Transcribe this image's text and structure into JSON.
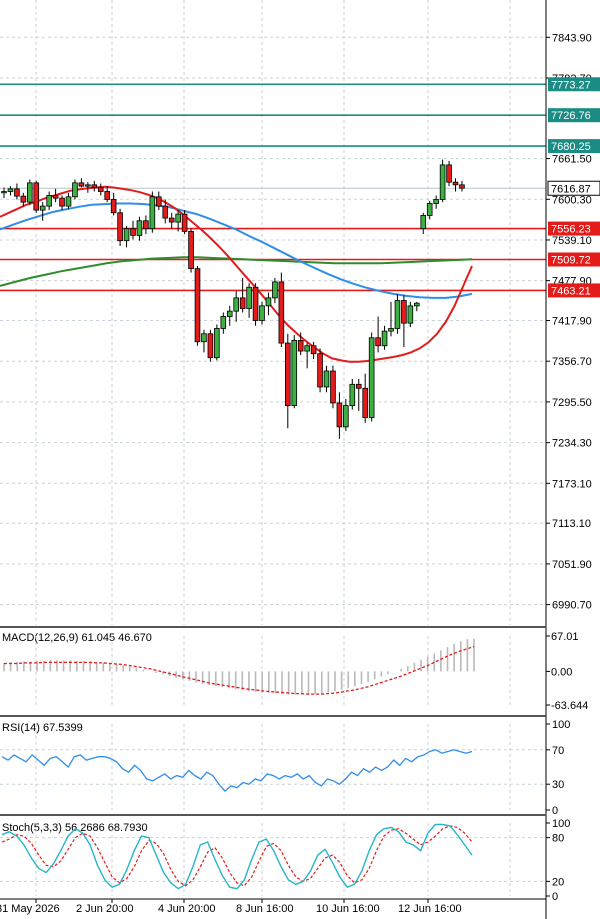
{
  "chart_data": [
    {
      "type": "candlestick",
      "panel": "price",
      "x_labels": [
        "31 May 2026",
        "2 Jun 20:00",
        "4 Jun 20:00",
        "8 Jun 16:00",
        "10 Jun 16:00",
        "12 Jun 16:00"
      ],
      "y_ticks": [
        "7843.90",
        "7782.70",
        "7661.50",
        "7600.30",
        "7539.10",
        "7477.90",
        "7417.90",
        "7356.70",
        "7295.50",
        "7234.30",
        "7173.10",
        "7113.10",
        "7051.90",
        "6990.70"
      ],
      "ylim": [
        6960,
        7900
      ],
      "current_price": {
        "label": "7616.87",
        "value": 7616.87
      },
      "levels": [
        {
          "label": "7773.27",
          "value": 7773.27,
          "color": "#1a8c84"
        },
        {
          "label": "7726.76",
          "value": 7726.76,
          "color": "#1a8c84"
        },
        {
          "label": "7680.25",
          "value": 7680.25,
          "color": "#1a8c84"
        },
        {
          "label": "7556.23",
          "value": 7556.23,
          "color": "#e31b1b"
        },
        {
          "label": "7509.72",
          "value": 7509.72,
          "color": "#e31b1b"
        },
        {
          "label": "7463.21",
          "value": 7463.21,
          "color": "#e31b1b"
        }
      ],
      "candles": [
        [
          7610,
          7618,
          7602,
          7612
        ],
        [
          7612,
          7620,
          7606,
          7616
        ],
        [
          7616,
          7624,
          7600,
          7605
        ],
        [
          7605,
          7610,
          7590,
          7596
        ],
        [
          7596,
          7630,
          7592,
          7625
        ],
        [
          7625,
          7628,
          7580,
          7584
        ],
        [
          7584,
          7596,
          7568,
          7590
        ],
        [
          7590,
          7612,
          7584,
          7606
        ],
        [
          7606,
          7616,
          7596,
          7602
        ],
        [
          7602,
          7606,
          7584,
          7590
        ],
        [
          7590,
          7610,
          7586,
          7604
        ],
        [
          7604,
          7630,
          7600,
          7625
        ],
        [
          7625,
          7632,
          7618,
          7620
        ],
        [
          7620,
          7626,
          7610,
          7622
        ],
        [
          7622,
          7628,
          7612,
          7618
        ],
        [
          7618,
          7624,
          7606,
          7612
        ],
        [
          7612,
          7620,
          7596,
          7600
        ],
        [
          7600,
          7610,
          7576,
          7580
        ],
        [
          7580,
          7586,
          7530,
          7538
        ],
        [
          7538,
          7560,
          7528,
          7556
        ],
        [
          7556,
          7568,
          7540,
          7546
        ],
        [
          7546,
          7574,
          7538,
          7568
        ],
        [
          7568,
          7576,
          7548,
          7556
        ],
        [
          7556,
          7612,
          7550,
          7604
        ],
        [
          7604,
          7612,
          7584,
          7590
        ],
        [
          7590,
          7600,
          7564,
          7572
        ],
        [
          7572,
          7580,
          7556,
          7566
        ],
        [
          7566,
          7584,
          7552,
          7578
        ],
        [
          7578,
          7584,
          7548,
          7552
        ],
        [
          7552,
          7556,
          7490,
          7496
        ],
        [
          7496,
          7500,
          7380,
          7386
        ],
        [
          7386,
          7404,
          7370,
          7398
        ],
        [
          7398,
          7404,
          7356,
          7362
        ],
        [
          7362,
          7412,
          7358,
          7406
        ],
        [
          7406,
          7430,
          7398,
          7424
        ],
        [
          7424,
          7440,
          7410,
          7432
        ],
        [
          7432,
          7462,
          7416,
          7452
        ],
        [
          7452,
          7482,
          7430,
          7436
        ],
        [
          7436,
          7474,
          7422,
          7468
        ],
        [
          7468,
          7474,
          7410,
          7418
        ],
        [
          7418,
          7446,
          7412,
          7440
        ],
        [
          7440,
          7460,
          7426,
          7452
        ],
        [
          7452,
          7482,
          7444,
          7476
        ],
        [
          7476,
          7490,
          7378,
          7384
        ],
        [
          7384,
          7398,
          7256,
          7290
        ],
        [
          7290,
          7396,
          7286,
          7388
        ],
        [
          7388,
          7400,
          7366,
          7372
        ],
        [
          7372,
          7384,
          7346,
          7380
        ],
        [
          7380,
          7386,
          7360,
          7368
        ],
        [
          7368,
          7376,
          7310,
          7318
        ],
        [
          7318,
          7350,
          7310,
          7342
        ],
        [
          7342,
          7350,
          7286,
          7294
        ],
        [
          7294,
          7310,
          7240,
          7258
        ],
        [
          7258,
          7300,
          7252,
          7290
        ],
        [
          7290,
          7330,
          7284,
          7322
        ],
        [
          7322,
          7330,
          7282,
          7316
        ],
        [
          7316,
          7338,
          7264,
          7272
        ],
        [
          7272,
          7400,
          7266,
          7392
        ],
        [
          7392,
          7424,
          7370,
          7380
        ],
        [
          7380,
          7410,
          7374,
          7402
        ],
        [
          7402,
          7446,
          7394,
          7406
        ],
        [
          7406,
          7458,
          7398,
          7448
        ],
        [
          7448,
          7456,
          7378,
          7414
        ],
        [
          7414,
          7446,
          7408,
          7440
        ],
        [
          7440,
          7446,
          7432,
          7444
        ],
        [
          7556,
          7580,
          7548,
          7576
        ],
        [
          7576,
          7598,
          7570,
          7594
        ],
        [
          7594,
          7606,
          7586,
          7600
        ],
        [
          7600,
          7660,
          7596,
          7652
        ],
        [
          7652,
          7658,
          7620,
          7626
        ],
        [
          7626,
          7632,
          7612,
          7622
        ],
        [
          7622,
          7628,
          7612,
          7617
        ]
      ],
      "ma_red": [
        7574,
        7580,
        7586,
        7592,
        7596,
        7601,
        7605,
        7609,
        7613,
        7615,
        7617,
        7618,
        7619,
        7618,
        7616,
        7614,
        7611,
        7607,
        7602,
        7595,
        7587,
        7577,
        7566,
        7555,
        7543,
        7530,
        7516,
        7501,
        7486,
        7471,
        7456,
        7440,
        7424,
        7410,
        7398,
        7387,
        7377,
        7368,
        7361,
        7358,
        7356,
        7356,
        7357,
        7359,
        7361,
        7363,
        7366,
        7370,
        7376,
        7385,
        7398,
        7416,
        7440,
        7470,
        7500
      ],
      "ma_blue": [
        7555,
        7562,
        7569,
        7575,
        7581,
        7585,
        7589,
        7592,
        7593,
        7594,
        7594,
        7593,
        7591,
        7588,
        7583,
        7578,
        7571,
        7563,
        7555,
        7545,
        7536,
        7526,
        7516,
        7506,
        7497,
        7488,
        7480,
        7473,
        7467,
        7462,
        7458,
        7455,
        7453,
        7452,
        7452,
        7454,
        7458
      ],
      "ma_green": [
        7470,
        7476,
        7482,
        7487,
        7492,
        7496,
        7500,
        7504,
        7507,
        7509,
        7511,
        7512,
        7513,
        7513,
        7512,
        7511,
        7510,
        7509,
        7508,
        7507,
        7506,
        7505,
        7504,
        7504,
        7504,
        7504,
        7505,
        7506,
        7507,
        7508,
        7509,
        7510
      ]
    },
    {
      "type": "bar",
      "panel": "macd",
      "title": "MACD(12,26,9) 61.045 46.670",
      "y_ticks": [
        "67.01",
        "0.00",
        "-63.644"
      ],
      "ylim": [
        -63.644,
        67.01
      ],
      "histogram": [
        16,
        17,
        18,
        19,
        19,
        20,
        20,
        21,
        21,
        21,
        21,
        20,
        20,
        19,
        18,
        17,
        16,
        14,
        12,
        9,
        6,
        3,
        0,
        -3,
        -6,
        -9,
        -12,
        -15,
        -18,
        -21,
        -24,
        -26,
        -28,
        -30,
        -32,
        -34,
        -36,
        -38,
        -39,
        -40,
        -41,
        -42,
        -43,
        -44,
        -44,
        -44,
        -44,
        -43,
        -42,
        -40,
        -38,
        -35,
        -32,
        -28,
        -24,
        -20,
        -15,
        -10,
        -5,
        0,
        5,
        10,
        16,
        22,
        28,
        34,
        40,
        46,
        52,
        57,
        61,
        62
      ],
      "signal": [
        15,
        15,
        15,
        16,
        16,
        16,
        17,
        17,
        17,
        17,
        17,
        17,
        17,
        17,
        16,
        16,
        15,
        14,
        13,
        11,
        9,
        7,
        5,
        2,
        -1,
        -4,
        -7,
        -10,
        -13,
        -16,
        -19,
        -22,
        -24,
        -26,
        -28,
        -30,
        -32,
        -34,
        -35,
        -37,
        -38,
        -39,
        -40,
        -41,
        -42,
        -42,
        -43,
        -43,
        -43,
        -42,
        -41,
        -39,
        -37,
        -35,
        -32,
        -29,
        -25,
        -21,
        -17,
        -13,
        -9,
        -4,
        1,
        6,
        11,
        17,
        23,
        29,
        34,
        39,
        43,
        47
      ]
    },
    {
      "type": "line",
      "panel": "rsi",
      "title": "RSI(14) 67.5399",
      "y_ticks": [
        "100",
        "70",
        "30",
        "0"
      ],
      "ylim": [
        0,
        100
      ],
      "values": [
        62,
        58,
        64,
        60,
        56,
        64,
        58,
        52,
        60,
        62,
        56,
        50,
        62,
        64,
        58,
        60,
        62,
        62,
        60,
        56,
        48,
        44,
        52,
        46,
        36,
        34,
        38,
        42,
        36,
        40,
        38,
        46,
        40,
        36,
        44,
        40,
        30,
        22,
        28,
        26,
        32,
        30,
        36,
        34,
        42,
        40,
        36,
        40,
        38,
        42,
        36,
        40,
        32,
        28,
        36,
        34,
        30,
        36,
        44,
        40,
        48,
        44,
        50,
        46,
        50,
        58,
        52,
        60,
        56,
        62,
        64,
        68,
        70,
        66,
        68,
        70,
        68,
        66,
        68
      ]
    },
    {
      "type": "line",
      "panel": "stochastic",
      "title": "Stoch(5,3,3) 56.2686 68.7930",
      "y_ticks": [
        "100",
        "80",
        "20",
        "0"
      ],
      "ylim": [
        0,
        100
      ],
      "k": [
        84,
        88,
        82,
        70,
        52,
        38,
        32,
        44,
        62,
        82,
        92,
        86,
        70,
        42,
        22,
        12,
        16,
        36,
        62,
        82,
        80,
        56,
        32,
        18,
        10,
        16,
        40,
        70,
        74,
        50,
        28,
        12,
        10,
        22,
        50,
        74,
        78,
        62,
        40,
        22,
        16,
        20,
        34,
        56,
        64,
        46,
        26,
        12,
        16,
        34,
        62,
        84,
        92,
        94,
        88,
        74,
        70,
        62,
        86,
        98,
        98,
        96,
        84,
        70,
        56
      ],
      "d": [
        74,
        78,
        84,
        82,
        72,
        56,
        42,
        40,
        48,
        64,
        80,
        86,
        82,
        66,
        46,
        26,
        18,
        24,
        40,
        62,
        76,
        72,
        58,
        36,
        20,
        14,
        22,
        40,
        60,
        66,
        52,
        32,
        18,
        14,
        26,
        48,
        68,
        72,
        62,
        42,
        26,
        20,
        24,
        38,
        52,
        56,
        46,
        28,
        18,
        22,
        38,
        62,
        82,
        90,
        92,
        86,
        78,
        70,
        74,
        82,
        92,
        96,
        94,
        86,
        74
      ]
    }
  ]
}
